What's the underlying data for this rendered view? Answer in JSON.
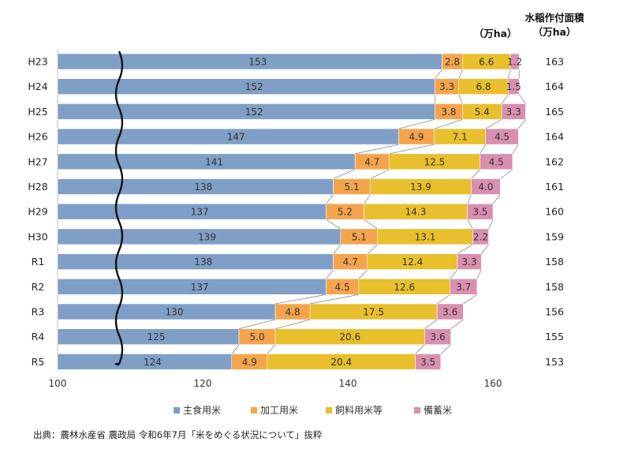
{
  "chart_data": {
    "type": "bar",
    "stacked": true,
    "orientation": "horizontal",
    "axis_break": true,
    "unit_label": "（万ha）",
    "right_column_title": [
      "水稲作付面積",
      "（万ha）"
    ],
    "categories": [
      "H23",
      "H24",
      "H25",
      "H26",
      "H27",
      "H28",
      "H29",
      "H30",
      "R1",
      "R2",
      "R3",
      "R4",
      "R5"
    ],
    "series": [
      {
        "name": "主食用米",
        "color": "#7f9fc7",
        "values": [
          153,
          152,
          152,
          147,
          141,
          138,
          137,
          139,
          138,
          137,
          130,
          125,
          124
        ]
      },
      {
        "name": "加工用米",
        "color": "#f4a44c",
        "values": [
          2.8,
          3.3,
          3.8,
          4.9,
          4.7,
          5.1,
          5.2,
          5.1,
          4.7,
          4.5,
          4.8,
          5.0,
          4.9
        ]
      },
      {
        "name": "飼料用米等",
        "color": "#e8bf2c",
        "values": [
          6.6,
          6.8,
          5.4,
          7.1,
          12.5,
          13.9,
          14.3,
          13.1,
          12.4,
          12.6,
          17.5,
          20.6,
          20.4
        ]
      },
      {
        "name": "備蓄米",
        "color": "#d98fb0",
        "values": [
          1.2,
          1.5,
          3.3,
          4.5,
          4.5,
          4.0,
          3.5,
          2.2,
          3.3,
          3.7,
          3.6,
          3.6,
          3.5
        ]
      }
    ],
    "totals": [
      163,
      164,
      165,
      164,
      162,
      161,
      160,
      159,
      158,
      158,
      156,
      155,
      153
    ],
    "xlim": [
      100,
      163
    ],
    "xticks": [
      100,
      120,
      140,
      160
    ],
    "legend_position": "bottom"
  },
  "source_note": "出典：農林水産省 農政局 令和6年7月「米をめぐる状況について」抜粋"
}
